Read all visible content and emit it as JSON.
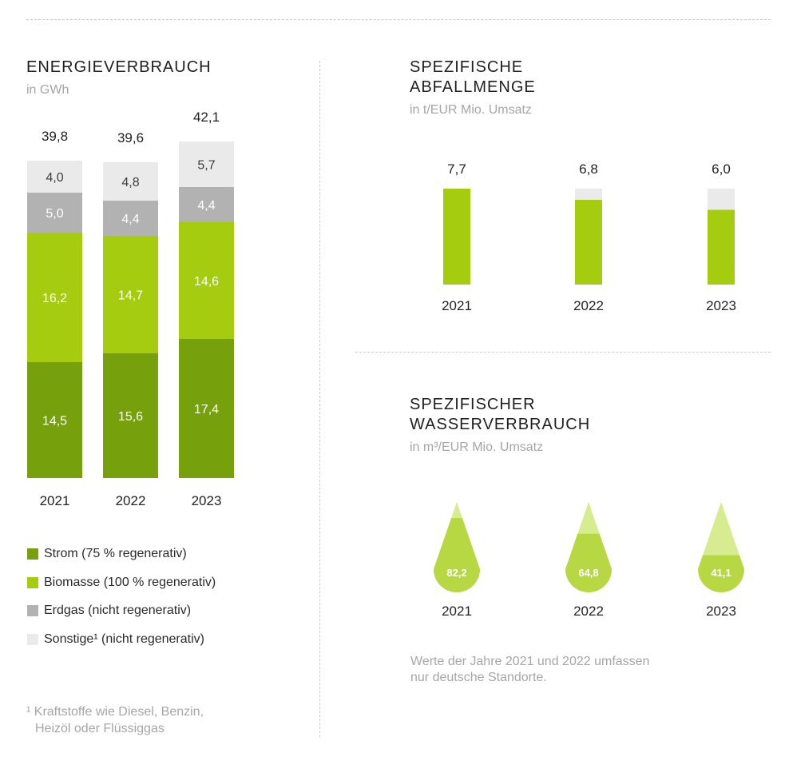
{
  "colors": {
    "strom": "#77a10c",
    "biomasse": "#a5cc0f",
    "erdgas": "#b2b2b2",
    "sonstige": "#eaeaea",
    "drop_dark": "#b8d843",
    "drop_light": "#d7ec90",
    "white_label": "#ffffff",
    "gray_label": "#3c3c3c"
  },
  "energie": {
    "title": "ENERGIEVERBRAUCH",
    "subtitle": "in GWh",
    "legend": [
      {
        "key": "strom",
        "label": "Strom (75 % regenerativ)"
      },
      {
        "key": "biomasse",
        "label": "Biomasse (100 % regenerativ)"
      },
      {
        "key": "erdgas",
        "label": "Erdgas (nicht regenerativ)"
      },
      {
        "key": "sonstige",
        "label": "Sonstige¹ (nicht regenerativ)"
      }
    ],
    "footnote_line1": "¹ Kraftstoffe wie Diesel, Benzin,",
    "footnote_line2": "Heizöl oder Flüssiggas"
  },
  "abfall": {
    "title_line1": "SPEZIFISCHE",
    "title_line2": "ABFALLMENGE",
    "subtitle": "in t/EUR Mio. Umsatz"
  },
  "wasser": {
    "title_line1": "SPEZIFISCHER",
    "title_line2": "WASSERVERBRAUCH",
    "subtitle": "in m³/EUR Mio. Umsatz",
    "note_line1": "Werte der Jahre 2021 und 2022 umfassen",
    "note_line2": "nur deutsche Standorte."
  },
  "chart_data": [
    {
      "type": "bar",
      "stacked": true,
      "title": "ENERGIEVERBRAUCH",
      "subtitle": "in GWh",
      "categories": [
        "2021",
        "2022",
        "2023"
      ],
      "series": [
        {
          "name": "Strom (75 % regenerativ)",
          "key": "strom",
          "values": [
            14.5,
            15.6,
            17.4
          ],
          "labels": [
            "14,5",
            "15,6",
            "17,4"
          ]
        },
        {
          "name": "Biomasse (100 % regenerativ)",
          "key": "biomasse",
          "values": [
            16.2,
            14.7,
            14.6
          ],
          "labels": [
            "16,2",
            "14,7",
            "14,6"
          ]
        },
        {
          "name": "Erdgas (nicht regenerativ)",
          "key": "erdgas",
          "values": [
            5.0,
            4.4,
            4.4
          ],
          "labels": [
            "5,0",
            "4,4",
            "4,4"
          ]
        },
        {
          "name": "Sonstige¹ (nicht regenerativ)",
          "key": "sonstige",
          "values": [
            4.0,
            4.8,
            5.7
          ],
          "labels": [
            "4,0",
            "4,8",
            "5,7"
          ]
        }
      ],
      "totals": [
        39.8,
        39.6,
        42.1
      ],
      "total_labels": [
        "39,8",
        "39,6",
        "42,1"
      ]
    },
    {
      "type": "bar",
      "title": "SPEZIFISCHE ABFALLMENGE",
      "subtitle": "in t/EUR Mio. Umsatz",
      "categories": [
        "2021",
        "2022",
        "2023"
      ],
      "values": [
        7.7,
        6.8,
        6.0
      ],
      "value_labels": [
        "7,7",
        "6,8",
        "6,0"
      ],
      "reference": 7.7
    },
    {
      "type": "area",
      "shape": "drop",
      "title": "SPEZIFISCHER WASSERVERBRAUCH",
      "subtitle": "in m³/EUR Mio. Umsatz",
      "categories": [
        "2021",
        "2022",
        "2023"
      ],
      "values": [
        82.2,
        64.8,
        41.1
      ],
      "value_labels": [
        "82,2",
        "64,8",
        "41,1"
      ],
      "reference": 100
    }
  ]
}
